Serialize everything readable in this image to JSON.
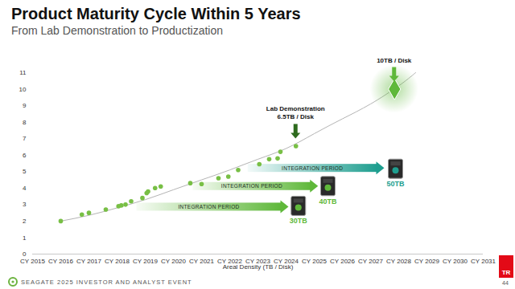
{
  "chart_data": {
    "type": "scatter",
    "title": "Product Maturity Cycle Within 5 Years",
    "subtitle": "From Lab Demonstration to Productization",
    "x_label": "Areal Density (TB / Disk)",
    "xlim": [
      2015,
      2031
    ],
    "xticks": [
      {
        "value": 2015,
        "label": "CY 2015"
      },
      {
        "value": 2016,
        "label": "CY 2016"
      },
      {
        "value": 2017,
        "label": "CY 2017"
      },
      {
        "value": 2018,
        "label": "CY 2018"
      },
      {
        "value": 2019,
        "label": "CY 2019"
      },
      {
        "value": 2020,
        "label": "CY 2020"
      },
      {
        "value": 2021,
        "label": "CY 2021"
      },
      {
        "value": 2022,
        "label": "CY 2022"
      },
      {
        "value": 2023,
        "label": "CY 2023"
      },
      {
        "value": 2024,
        "label": "CY 2024"
      },
      {
        "value": 2025,
        "label": "CY 2025"
      },
      {
        "value": 2026,
        "label": "CY 2026"
      },
      {
        "value": 2027,
        "label": "CY 2027"
      },
      {
        "value": 2028,
        "label": "CY 2028"
      },
      {
        "value": 2029,
        "label": "CY 2029"
      },
      {
        "value": 2030,
        "label": "CY 2030"
      },
      {
        "value": 2031,
        "label": "CY 2031"
      }
    ],
    "ylim": [
      0,
      11
    ],
    "yticks": [
      0,
      1,
      2,
      3,
      4,
      5,
      6,
      7,
      8,
      9,
      10,
      11
    ],
    "grid": false,
    "series": [
      {
        "type": "line",
        "color": "#b4b4b4",
        "line_style": "solid",
        "x": [
          2016,
          2017,
          2018,
          2019,
          2020,
          2021,
          2022,
          2023,
          2024,
          2025,
          2026,
          2027,
          2028,
          2028.6
        ],
        "values": [
          2.0,
          2.35,
          2.8,
          3.3,
          3.9,
          4.5,
          5.1,
          5.75,
          6.4,
          7.3,
          8.2,
          9.1,
          10.2,
          11.0
        ]
      },
      {
        "type": "scatter",
        "color": "#78bf45",
        "marker": "circle",
        "x": [
          2016.0,
          2016.75,
          2017.0,
          2017.6,
          2018.05,
          2018.15,
          2018.3,
          2018.5,
          2018.9,
          2019.05,
          2019.1,
          2019.35,
          2019.55,
          2020.6,
          2021.0,
          2021.6,
          2021.95,
          2022.3,
          2023.05,
          2023.4,
          2023.7,
          2023.8,
          2024.35
        ],
        "values": [
          2.0,
          2.4,
          2.5,
          2.7,
          2.9,
          2.95,
          3.0,
          3.2,
          3.4,
          3.7,
          3.8,
          4.0,
          4.1,
          4.3,
          4.25,
          4.6,
          4.7,
          5.1,
          5.45,
          5.75,
          5.8,
          6.2,
          6.55
        ]
      },
      {
        "type": "scatter",
        "color": "#5fb83a",
        "marker": "diamond",
        "x": [
          2027.85
        ],
        "values": [
          10.0
        ]
      }
    ],
    "annotations": [
      {
        "lines": [
          "Lab Demonstration",
          "6.5TB / Disk"
        ],
        "x": 2024.35,
        "y": 6.55,
        "color": "#2e6b1e"
      },
      {
        "lines": [
          "10TB / Disk"
        ],
        "x": 2027.85,
        "y": 10.0,
        "color": "#5fb83a"
      }
    ],
    "integration_periods": [
      {
        "label": "INTEGRATION PERIOD",
        "start": 2018.7,
        "end": 2024.1,
        "y": 2.85,
        "color": "#5fb83a",
        "product": "30TB",
        "product_x": 2024.45,
        "product_y": 2.9
      },
      {
        "label": "INTEGRATION PERIOD",
        "start": 2020.7,
        "end": 2025.15,
        "y": 4.1,
        "color": "#5fb83a",
        "product": "40TB",
        "product_x": 2025.5,
        "product_y": 4.1
      },
      {
        "label": "INTEGRATION PERIOD",
        "start": 2022.65,
        "end": 2027.5,
        "y": 5.2,
        "color": "#1e9e8f",
        "product": "50TB",
        "product_x": 2027.9,
        "product_y": 5.15
      }
    ],
    "footer": "SEAGATE 2025 INVESTOR AND ANALYST EVENT",
    "page": 44,
    "badge": "TR"
  }
}
